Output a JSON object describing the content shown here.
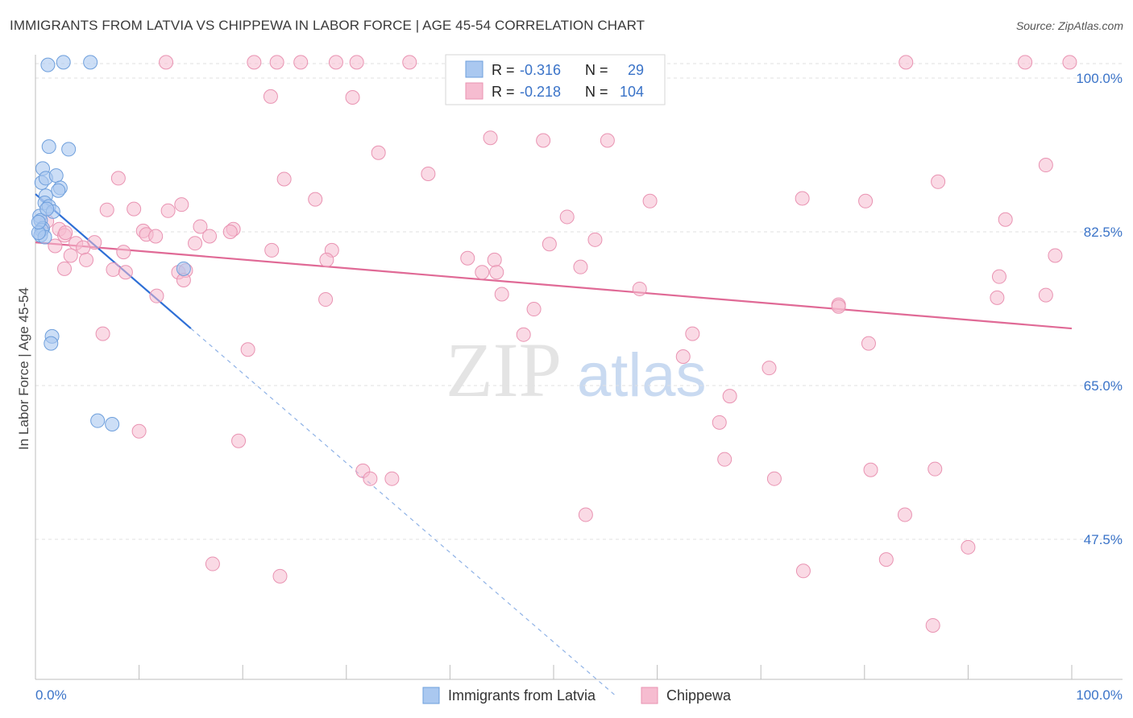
{
  "header": {
    "title": "IMMIGRANTS FROM LATVIA VS CHIPPEWA IN LABOR FORCE | AGE 45-54 CORRELATION CHART",
    "source": "Source: ZipAtlas.com"
  },
  "watermark": {
    "zip": "ZIP",
    "atlas": "atlas"
  },
  "legend_box": {
    "rows": [
      {
        "r_label": "R =",
        "r_value": "-0.316",
        "n_label": "N =",
        "n_value": "29"
      },
      {
        "r_label": "R =",
        "r_value": "-0.218",
        "n_label": "N =",
        "n_value": "104"
      }
    ]
  },
  "bottom_legend": {
    "items": [
      {
        "label": "Immigrants from Latvia"
      },
      {
        "label": "Chippewa"
      }
    ]
  },
  "colors": {
    "latvia_fill": "#aac8f0",
    "latvia_stroke": "#6e9fdc",
    "latvia_line": "#2e6fd6",
    "chippewa_fill": "#f6bcd0",
    "chippewa_stroke": "#e993b2",
    "chippewa_line": "#e06a96",
    "axis_text": "#3a73c8",
    "grid": "#e2e2e2"
  },
  "chart_data": {
    "type": "scatter",
    "title": "IMMIGRANTS FROM LATVIA VS CHIPPEWA IN LABOR FORCE | AGE 45-54 CORRELATION CHART",
    "xlabel": "",
    "ylabel": "In Labor Force | Age 45-54",
    "xlim": [
      0,
      100
    ],
    "ylim": [
      30,
      100
    ],
    "x_tick_labels": [
      "0.0%",
      "100.0%"
    ],
    "y_ticks": [
      47.5,
      65.0,
      82.5,
      100.0
    ],
    "y_tick_labels": [
      "47.5%",
      "65.0%",
      "82.5%",
      "100.0%"
    ],
    "grid": true,
    "legend_position": "bottom",
    "series": [
      {
        "name": "Immigrants from Latvia",
        "r": -0.316,
        "n": 29,
        "trend": {
          "x0": 0.0,
          "y0": 86.8,
          "x1": 15.0,
          "y1": 71.5,
          "dash_to_x": 56.0
        },
        "points": [
          [
            1.2,
            101.5
          ],
          [
            2.7,
            101.8
          ],
          [
            5.3,
            101.8
          ],
          [
            1.3,
            92.2
          ],
          [
            3.2,
            91.9
          ],
          [
            0.7,
            89.7
          ],
          [
            0.6,
            88.1
          ],
          [
            1.0,
            88.6
          ],
          [
            2.0,
            88.9
          ],
          [
            2.4,
            87.5
          ],
          [
            2.2,
            87.2
          ],
          [
            1.0,
            86.6
          ],
          [
            0.9,
            85.8
          ],
          [
            1.3,
            85.4
          ],
          [
            1.7,
            84.8
          ],
          [
            0.4,
            84.3
          ],
          [
            0.5,
            83.8
          ],
          [
            0.7,
            82.9
          ],
          [
            0.6,
            82.7
          ],
          [
            0.5,
            82.1
          ],
          [
            0.9,
            81.9
          ],
          [
            0.3,
            82.4
          ],
          [
            14.3,
            78.3
          ],
          [
            1.6,
            70.6
          ],
          [
            1.5,
            69.8
          ],
          [
            6.0,
            61.0
          ],
          [
            7.4,
            60.6
          ],
          [
            0.3,
            83.6
          ],
          [
            1.1,
            85.1
          ]
        ]
      },
      {
        "name": "Chippewa",
        "r": -0.218,
        "n": 104,
        "trend": {
          "x0": 0.0,
          "y0": 81.3,
          "x1": 100.0,
          "y1": 71.5
        },
        "points": [
          [
            12.6,
            101.8
          ],
          [
            21.1,
            101.8
          ],
          [
            23.3,
            101.8
          ],
          [
            25.6,
            101.8
          ],
          [
            29.0,
            101.8
          ],
          [
            31.0,
            101.8
          ],
          [
            36.1,
            101.8
          ],
          [
            46.4,
            101.8
          ],
          [
            84.0,
            101.8
          ],
          [
            95.5,
            101.8
          ],
          [
            99.8,
            101.8
          ],
          [
            22.7,
            97.9
          ],
          [
            30.6,
            97.8
          ],
          [
            43.9,
            93.2
          ],
          [
            49.0,
            92.9
          ],
          [
            55.2,
            92.9
          ],
          [
            33.1,
            91.5
          ],
          [
            37.9,
            89.1
          ],
          [
            8.0,
            88.6
          ],
          [
            24.0,
            88.5
          ],
          [
            87.1,
            88.2
          ],
          [
            97.5,
            90.1
          ],
          [
            27.0,
            86.2
          ],
          [
            14.1,
            85.6
          ],
          [
            59.3,
            86.0
          ],
          [
            74.0,
            86.3
          ],
          [
            80.1,
            86.0
          ],
          [
            6.9,
            85.0
          ],
          [
            9.5,
            85.1
          ],
          [
            12.8,
            84.9
          ],
          [
            51.3,
            84.2
          ],
          [
            93.6,
            83.9
          ],
          [
            10.4,
            82.6
          ],
          [
            15.9,
            83.1
          ],
          [
            19.1,
            82.8
          ],
          [
            2.3,
            82.8
          ],
          [
            10.7,
            82.2
          ],
          [
            11.6,
            82.0
          ],
          [
            2.8,
            82.1
          ],
          [
            16.8,
            82.0
          ],
          [
            3.9,
            81.2
          ],
          [
            5.7,
            81.3
          ],
          [
            15.4,
            81.2
          ],
          [
            49.6,
            81.1
          ],
          [
            54.0,
            81.6
          ],
          [
            1.9,
            80.9
          ],
          [
            4.6,
            80.7
          ],
          [
            8.5,
            80.2
          ],
          [
            22.8,
            80.4
          ],
          [
            28.6,
            80.4
          ],
          [
            3.4,
            79.8
          ],
          [
            4.9,
            79.3
          ],
          [
            7.5,
            78.2
          ],
          [
            8.7,
            77.9
          ],
          [
            13.8,
            77.9
          ],
          [
            14.5,
            78.1
          ],
          [
            2.8,
            78.3
          ],
          [
            28.1,
            79.3
          ],
          [
            41.7,
            79.5
          ],
          [
            44.3,
            79.3
          ],
          [
            52.6,
            78.5
          ],
          [
            98.4,
            79.8
          ],
          [
            43.1,
            77.9
          ],
          [
            44.5,
            77.9
          ],
          [
            93.0,
            77.4
          ],
          [
            14.3,
            77.0
          ],
          [
            58.3,
            76.0
          ],
          [
            11.7,
            75.2
          ],
          [
            28.0,
            74.8
          ],
          [
            45.0,
            75.4
          ],
          [
            92.8,
            75.0
          ],
          [
            97.5,
            75.3
          ],
          [
            48.1,
            73.7
          ],
          [
            77.5,
            74.2
          ],
          [
            77.5,
            74.0
          ],
          [
            6.5,
            70.9
          ],
          [
            47.1,
            70.8
          ],
          [
            63.4,
            70.9
          ],
          [
            20.5,
            69.1
          ],
          [
            80.4,
            69.8
          ],
          [
            62.5,
            68.3
          ],
          [
            70.8,
            67.0
          ],
          [
            10.0,
            59.8
          ],
          [
            67.0,
            63.8
          ],
          [
            66.0,
            60.8
          ],
          [
            19.6,
            58.7
          ],
          [
            66.5,
            56.6
          ],
          [
            31.6,
            55.3
          ],
          [
            32.3,
            54.4
          ],
          [
            34.4,
            54.4
          ],
          [
            71.3,
            54.4
          ],
          [
            80.6,
            55.4
          ],
          [
            86.8,
            55.5
          ],
          [
            53.1,
            50.3
          ],
          [
            83.9,
            50.3
          ],
          [
            17.1,
            44.7
          ],
          [
            23.6,
            43.3
          ],
          [
            74.1,
            43.9
          ],
          [
            82.1,
            45.2
          ],
          [
            90.0,
            46.6
          ],
          [
            86.6,
            37.7
          ],
          [
            1.1,
            83.7
          ],
          [
            2.9,
            82.4
          ],
          [
            18.8,
            82.5
          ]
        ]
      }
    ]
  }
}
